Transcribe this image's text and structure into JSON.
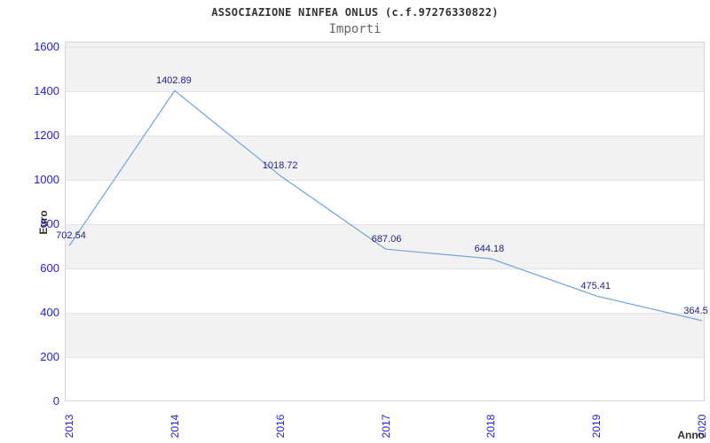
{
  "chart_data": {
    "type": "line",
    "title": "ASSOCIAZIONE NINFEA ONLUS (c.f.97276330822)",
    "subtitle": "Importi",
    "xlabel": "Anno",
    "ylabel": "Euro",
    "categories": [
      "2013",
      "2014",
      "2016",
      "2017",
      "2018",
      "2019",
      "2020"
    ],
    "series": [
      {
        "name": "Importi",
        "values": [
          702.54,
          1402.89,
          1018.72,
          687.06,
          644.18,
          475.41,
          364.5
        ],
        "value_labels": [
          "702.54",
          "1402.89",
          "1018.72",
          "687.06",
          "644.18",
          "475.41",
          "364.5"
        ]
      }
    ],
    "ylim": [
      0,
      1600
    ],
    "ytick_step": 200,
    "legend": "none",
    "grid": "alternating-horizontal-bands",
    "colors": {
      "line": "#76a5dc",
      "band": "#f2f2f2",
      "gridline": "#e3e3e3",
      "plot_border": "#d5d5d5",
      "tick_label": "#2222dd",
      "point_label": "#202088",
      "title": "#333333",
      "subtitle": "#666666",
      "axis_title": "#333333",
      "background": "#ffffff"
    }
  }
}
